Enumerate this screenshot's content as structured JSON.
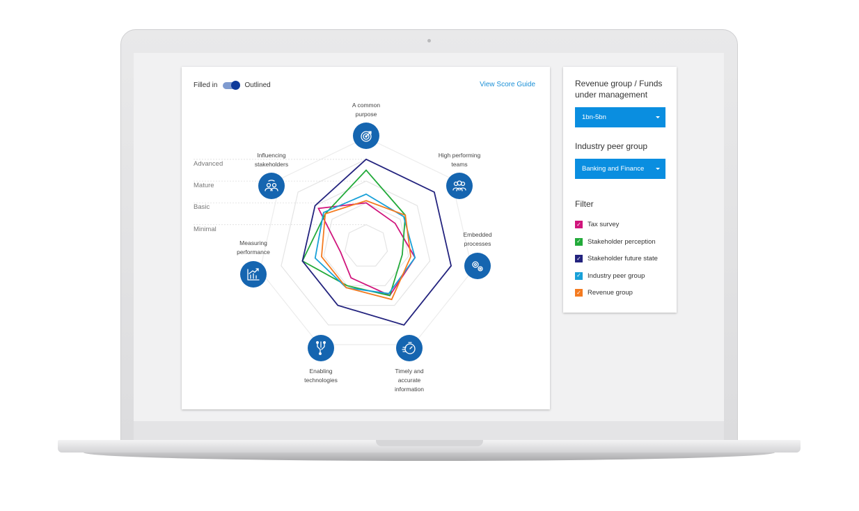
{
  "toggle": {
    "left_label": "Filled in",
    "right_label": "Outlined",
    "state": "Outlined"
  },
  "view_score_guide": "View Score Guide",
  "levels": [
    "Advanced",
    "Mature",
    "Basic",
    "Minimal"
  ],
  "axes": [
    {
      "lines": [
        "A common",
        "purpose"
      ],
      "icon": "target-icon"
    },
    {
      "lines": [
        "High performing",
        "teams"
      ],
      "icon": "team-icon"
    },
    {
      "lines": [
        "Embedded",
        "processes"
      ],
      "icon": "gears-icon"
    },
    {
      "lines": [
        "Timely and",
        "accurate",
        "information"
      ],
      "icon": "stopwatch-icon"
    },
    {
      "lines": [
        "Enabling",
        "technologies"
      ],
      "icon": "circuit-icon"
    },
    {
      "lines": [
        "Measuring",
        "performance"
      ],
      "icon": "growth-chart-icon"
    },
    {
      "lines": [
        "Influencing",
        "stakeholders"
      ],
      "icon": "stakeholders-icon"
    }
  ],
  "chart_data": {
    "type": "radar",
    "style": "outlined",
    "categories": [
      "A common purpose",
      "High performing teams",
      "Embedded processes",
      "Timely and accurate information",
      "Enabling technologies",
      "Measuring performance",
      "Influencing stakeholders"
    ],
    "scale_labels": [
      "Minimal",
      "Basic",
      "Mature",
      "Advanced"
    ],
    "range": [
      0,
      4
    ],
    "series": [
      {
        "name": "Tax survey",
        "color": "#d0157c",
        "values": [
          2.0,
          1.7,
          2.3,
          2.5,
          1.6,
          1.2,
          2.8
        ]
      },
      {
        "name": "Stakeholder perception",
        "color": "#22aa3a",
        "values": [
          3.5,
          2.3,
          1.7,
          2.5,
          2.0,
          3.0,
          2.4
        ]
      },
      {
        "name": "Stakeholder future state",
        "color": "#23237e",
        "values": [
          4.0,
          4.0,
          4.0,
          4.0,
          3.0,
          3.0,
          3.0
        ]
      },
      {
        "name": "Industry peer group",
        "color": "#18a0d8",
        "values": [
          2.4,
          2.2,
          2.3,
          2.4,
          2.1,
          2.4,
          2.5
        ]
      },
      {
        "name": "Revenue group",
        "color": "#f47b20",
        "values": [
          2.1,
          2.3,
          2.1,
          2.7,
          2.1,
          2.1,
          2.4
        ]
      }
    ]
  },
  "sidebar": {
    "revenue_title": "Revenue group / Funds under management",
    "revenue_value": "1bn-5bn",
    "peer_title": "Industry peer group",
    "peer_value": "Banking and Finance",
    "filter_title": "Filter",
    "filters": [
      {
        "label": "Tax survey",
        "color": "#d0157c",
        "checked": true
      },
      {
        "label": "Stakeholder perception",
        "color": "#22aa3a",
        "checked": true
      },
      {
        "label": "Stakeholder future state",
        "color": "#23237e",
        "checked": true
      },
      {
        "label": "Industry peer group",
        "color": "#18a0d8",
        "checked": true
      },
      {
        "label": "Revenue group",
        "color": "#f47b20",
        "checked": true
      }
    ]
  }
}
